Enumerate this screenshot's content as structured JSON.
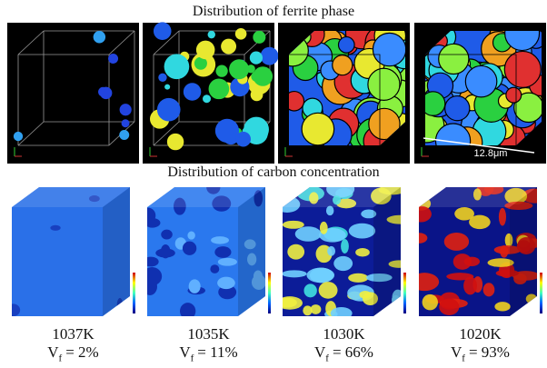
{
  "sections": [
    {
      "title": "Distribution of ferrite phase",
      "scale_label": "12.8μm"
    },
    {
      "title": "Distribution of carbon concentration"
    }
  ],
  "fraction": {
    "symbol": "V",
    "subscript": "f"
  },
  "conditions": [
    {
      "temperature": "1037K",
      "value": "= 2%"
    },
    {
      "temperature": "1035K",
      "value": "= 11%"
    },
    {
      "temperature": "1030K",
      "value": "= 66%"
    },
    {
      "temperature": "1020K",
      "value": "= 93%"
    }
  ]
}
